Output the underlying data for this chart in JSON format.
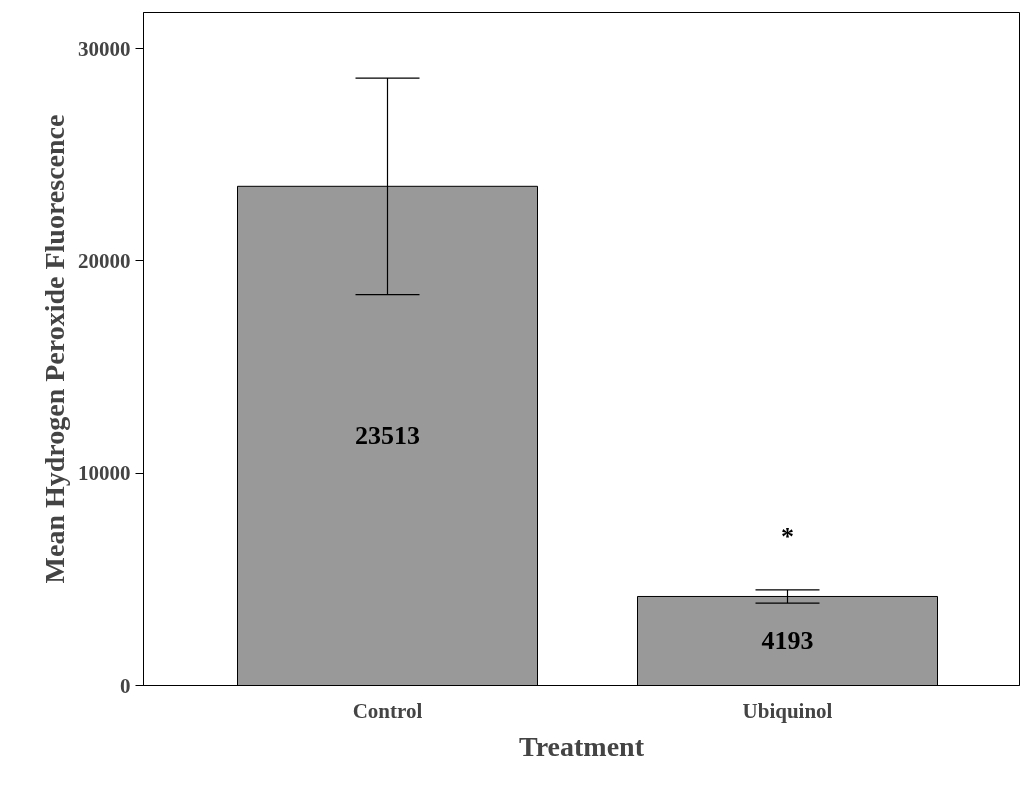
{
  "chart_data": {
    "type": "bar",
    "xlabel": "Treatment",
    "ylabel": "Mean Hydrogen Peroxide Fluorescence",
    "categories": [
      "Control",
      "Ubiquinol"
    ],
    "values": [
      23513,
      4193
    ],
    "errors": [
      5100,
      310
    ],
    "color": "#999999",
    "data_labels": true,
    "annotations": [
      "*"
    ],
    "ylim": [
      0,
      31700
    ],
    "yticks": [
      0,
      10000,
      20000,
      30000
    ],
    "grid": false
  }
}
